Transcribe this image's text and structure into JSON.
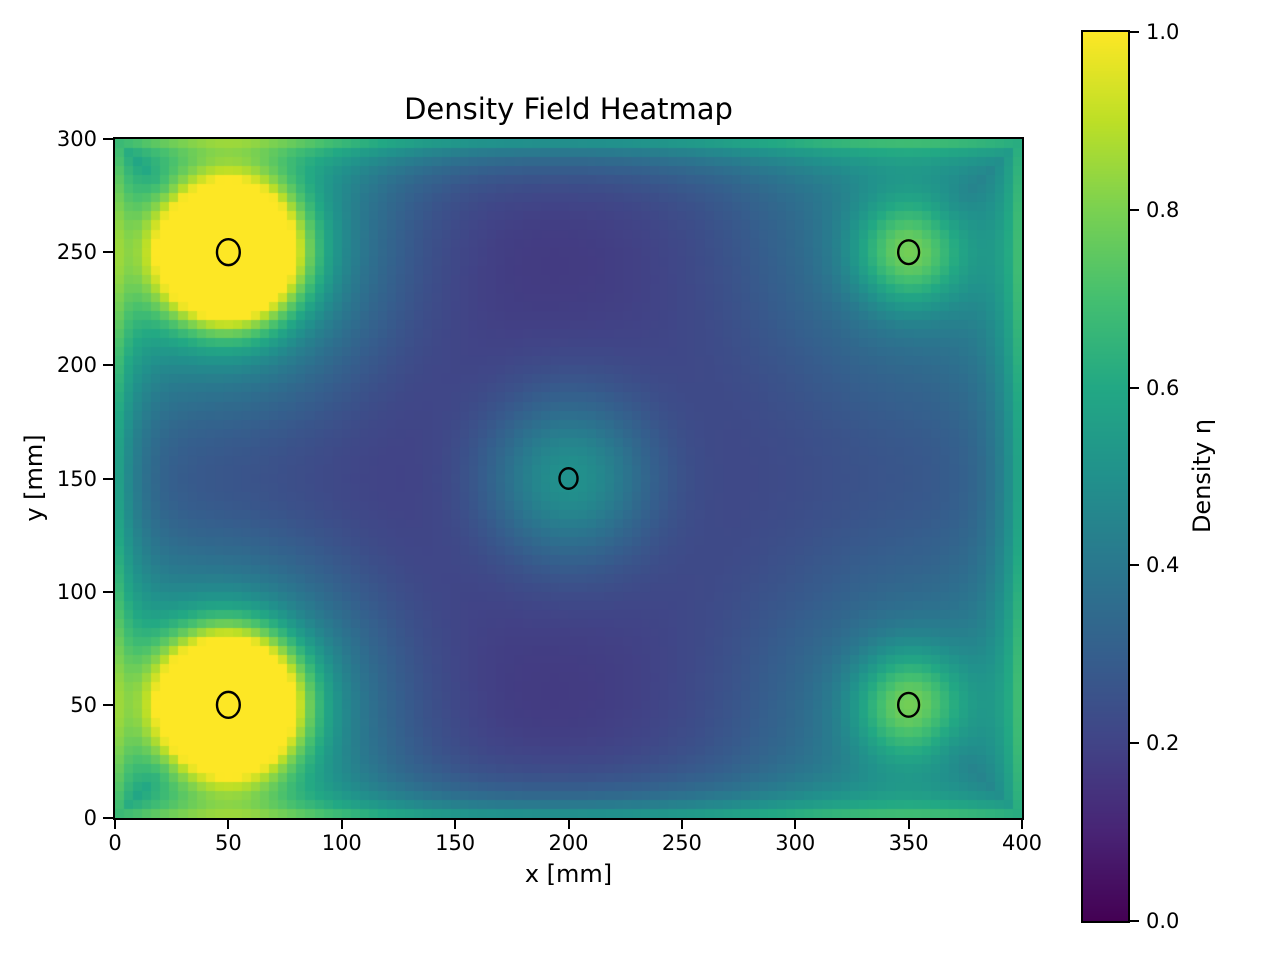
{
  "figure": {
    "title": "Density Field Heatmap",
    "background_color": "#ffffff",
    "text_color": "#000000"
  },
  "axes": {
    "xlabel": "x [mm]",
    "ylabel": "y [mm]",
    "x_tick_labels": [
      "0",
      "50",
      "100",
      "150",
      "200",
      "250",
      "300",
      "350",
      "400"
    ],
    "x_tick_values": [
      0,
      50,
      100,
      150,
      200,
      250,
      300,
      350,
      400
    ],
    "y_tick_labels": [
      "0",
      "50",
      "100",
      "150",
      "200",
      "250",
      "300"
    ],
    "y_tick_values": [
      0,
      50,
      100,
      150,
      200,
      250,
      300
    ]
  },
  "colorbar": {
    "label": "Density η",
    "tick_labels": [
      "0.0",
      "0.2",
      "0.4",
      "0.6",
      "0.8",
      "1.0"
    ],
    "tick_values": [
      0.0,
      0.2,
      0.4,
      0.6,
      0.8,
      1.0
    ],
    "min": 0.0,
    "max": 1.0
  },
  "chart_data": {
    "type": "heatmap",
    "title": "Density Field Heatmap",
    "xlabel": "x [mm]",
    "ylabel": "y [mm]",
    "colorbar_label": "Density η",
    "xlim": [
      0,
      400
    ],
    "ylim": [
      0,
      300
    ],
    "zlim": [
      0.0,
      1.0
    ],
    "grid_on": false,
    "colormap": "viridis",
    "colormap_stops": [
      {
        "t": 0.0,
        "hex": "#440154"
      },
      {
        "t": 0.1,
        "hex": "#482475"
      },
      {
        "t": 0.2,
        "hex": "#414487"
      },
      {
        "t": 0.3,
        "hex": "#355f8d"
      },
      {
        "t": 0.4,
        "hex": "#2a788e"
      },
      {
        "t": 0.5,
        "hex": "#21918c"
      },
      {
        "t": 0.6,
        "hex": "#22a884"
      },
      {
        "t": 0.7,
        "hex": "#44bf70"
      },
      {
        "t": 0.8,
        "hex": "#7ad151"
      },
      {
        "t": 0.9,
        "hex": "#bddf26"
      },
      {
        "t": 1.0,
        "hex": "#fde725"
      }
    ],
    "grid_cols": 100,
    "grid_rows": 75,
    "field_model": {
      "background_level": 0.09,
      "edge_glow": {
        "combine": "max",
        "edge_density_peak": 0.53,
        "narrow_amp": 0.36,
        "narrow_lambda_mm": 12,
        "wide_amp": 0.08,
        "wide_lambda_mm": 45
      },
      "sources": [
        {
          "x_mm": 50,
          "y_mm": 250,
          "amp": 1.55,
          "sigma_mm": 19,
          "halo_amp": 0.5,
          "halo_sigma_mm": 50,
          "approx_peak_density": 1.0
        },
        {
          "x_mm": 50,
          "y_mm": 50,
          "amp": 1.55,
          "sigma_mm": 19,
          "halo_amp": 0.5,
          "halo_sigma_mm": 50,
          "approx_peak_density": 1.0
        },
        {
          "x_mm": 350,
          "y_mm": 250,
          "amp": 0.38,
          "sigma_mm": 17,
          "halo_amp": 0.28,
          "halo_sigma_mm": 60,
          "approx_peak_density": 0.75
        },
        {
          "x_mm": 350,
          "y_mm": 50,
          "amp": 0.38,
          "sigma_mm": 17,
          "halo_amp": 0.28,
          "halo_sigma_mm": 60,
          "approx_peak_density": 0.75
        },
        {
          "x_mm": 200,
          "y_mm": 150,
          "amp": 0.3,
          "sigma_mm": 26,
          "halo_amp": 0.1,
          "halo_sigma_mm": 68,
          "approx_peak_density": 0.49
        }
      ]
    },
    "markers": {
      "shape": "open-circle",
      "edge_color": "#000000",
      "fill": "none",
      "points": [
        {
          "x_mm": 50,
          "y_mm": 250,
          "radius_px": 12.0
        },
        {
          "x_mm": 50,
          "y_mm": 50,
          "radius_px": 12.0
        },
        {
          "x_mm": 350,
          "y_mm": 250,
          "radius_px": 11.0
        },
        {
          "x_mm": 350,
          "y_mm": 50,
          "radius_px": 11.0
        },
        {
          "x_mm": 200,
          "y_mm": 150,
          "radius_px": 9.5
        }
      ]
    }
  }
}
